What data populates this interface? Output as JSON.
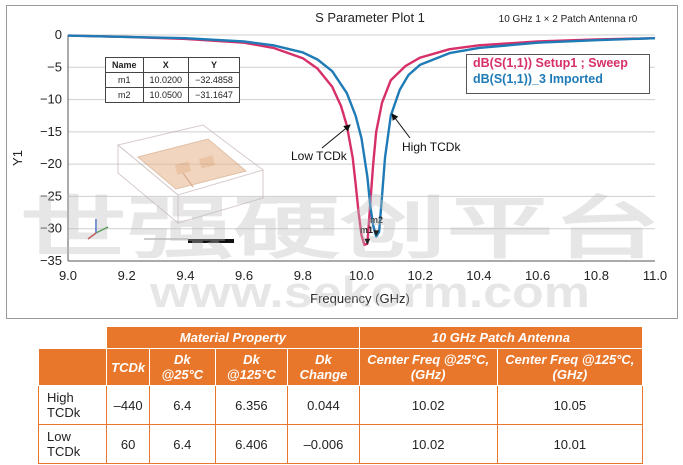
{
  "chart_data": {
    "type": "line",
    "title": "S Parameter Plot 1",
    "subtitle": "10 GHz 1 × 2 Patch Antenna r0",
    "xlabel": "Frequency (GHz)",
    "ylabel": "Y1",
    "xlim": [
      9.0,
      11.0
    ],
    "ylim": [
      -35,
      0
    ],
    "x_ticks": [
      "9.0",
      "9.2",
      "9.4",
      "9.6",
      "9.8",
      "10.0",
      "10.2",
      "10.4",
      "10.6",
      "10.8",
      "11.0"
    ],
    "y_ticks": [
      "0",
      "−5",
      "−10",
      "−15",
      "−20",
      "−25",
      "−30",
      "−35"
    ],
    "grid": true,
    "legend": "top-right",
    "series": [
      {
        "name": "dB(S(1,1)) Setup1 ; Sweep",
        "color": "#d72f6a",
        "x": [
          9.0,
          9.2,
          9.4,
          9.6,
          9.7,
          9.8,
          9.85,
          9.9,
          9.93,
          9.95,
          9.97,
          9.98,
          9.99,
          10.0,
          10.01,
          10.02,
          10.03,
          10.04,
          10.05,
          10.07,
          10.1,
          10.15,
          10.2,
          10.3,
          10.4,
          10.6,
          10.8,
          11.0
        ],
        "y": [
          -0.1,
          -0.3,
          -0.6,
          -1.2,
          -2.0,
          -3.6,
          -5.2,
          -8.0,
          -11.0,
          -14.0,
          -19.0,
          -23.0,
          -27.5,
          -31.0,
          -32.5,
          -32.3,
          -26.0,
          -20.0,
          -15.0,
          -10.5,
          -7.0,
          -4.8,
          -3.5,
          -2.2,
          -1.6,
          -1.0,
          -0.7,
          -0.5
        ]
      },
      {
        "name": "dB(S(1,1))_3 Imported",
        "color": "#1f7bb6",
        "x": [
          9.0,
          9.2,
          9.4,
          9.6,
          9.7,
          9.8,
          9.85,
          9.9,
          9.95,
          9.98,
          10.0,
          10.02,
          10.03,
          10.04,
          10.05,
          10.06,
          10.07,
          10.08,
          10.1,
          10.13,
          10.16,
          10.2,
          10.3,
          10.4,
          10.6,
          10.8,
          11.0
        ],
        "y": [
          -0.1,
          -0.3,
          -0.5,
          -1.0,
          -1.6,
          -2.7,
          -3.8,
          -5.6,
          -9.0,
          -12.5,
          -16.0,
          -22.0,
          -26.5,
          -29.5,
          -31.2,
          -30.5,
          -25.0,
          -19.0,
          -12.5,
          -8.5,
          -6.2,
          -4.6,
          -2.8,
          -2.0,
          -1.2,
          -0.8,
          -0.5
        ]
      }
    ],
    "annotations": [
      "Low TCDk",
      "High TCDk",
      "m1",
      "m2"
    ]
  },
  "markers": {
    "headers": [
      "Name",
      "X",
      "Y"
    ],
    "rows": [
      [
        "m1",
        "10.0200",
        "−32.4858"
      ],
      [
        "m2",
        "10.0500",
        "−31.1647"
      ]
    ]
  },
  "legend": {
    "line1": "dB(S(1,1)) Setup1 ; Sweep",
    "line2": "dB(S(1,1))_3 Imported"
  },
  "watermark": {
    "line1": "世强硬创平台",
    "line2": "www.sekorm.com"
  },
  "property_table": {
    "group1": "Material Property",
    "group2": "10 GHz Patch Antenna",
    "columns": [
      "TCDk",
      "Dk @25°C",
      "Dk @125°C",
      "Dk Change",
      "Center Freq @25°C, (GHz)",
      "Center Freq @125°C, (GHz)"
    ],
    "rows": [
      {
        "label": "High TCDk",
        "cells": [
          "–440",
          "6.4",
          "6.356",
          "0.044",
          "10.02",
          "10.05"
        ]
      },
      {
        "label": "Low TCDk",
        "cells": [
          "60",
          "6.4",
          "6.406",
          "–0.006",
          "10.02",
          "10.01"
        ]
      }
    ]
  }
}
